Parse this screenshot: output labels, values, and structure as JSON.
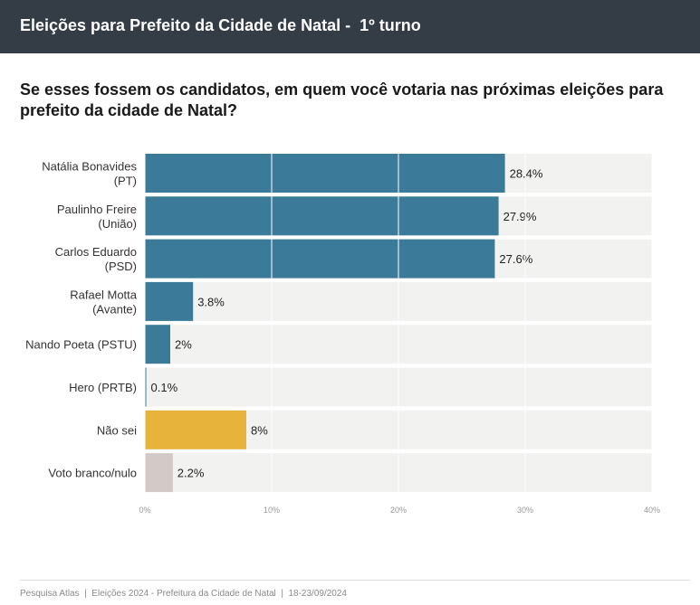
{
  "header": {
    "title": "Eleições para Prefeito da Cidade de Natal -  1º turno"
  },
  "question": "Se esses fossem os candidatos, em quem você votaria nas próximas eleições para prefeito da cidade de Natal?",
  "footer": "Pesquisa Atlas  |  Eleições 2024 - Prefeitura da Cidade de Natal  |  18-23/09/2024",
  "colors": {
    "header_bg": "#343c46",
    "candidate": "#3b7a99",
    "nao_sei": "#e8b33a",
    "branco_nulo": "#d3c9c6",
    "track": "#f2f2f0"
  },
  "chart_data": {
    "type": "bar",
    "orientation": "horizontal",
    "categories": [
      [
        "Natália Bonavides",
        "(PT)"
      ],
      [
        "Paulinho Freire",
        "(União)"
      ],
      [
        "Carlos Eduardo",
        "(PSD)"
      ],
      [
        "Rafael Motta",
        "(Avante)"
      ],
      [
        "Nando Poeta (PSTU)"
      ],
      [
        "Hero (PRTB)"
      ],
      [
        "Não sei"
      ],
      [
        "Voto branco/nulo"
      ]
    ],
    "values": [
      28.4,
      27.9,
      27.6,
      3.8,
      2,
      0.1,
      8,
      2.2
    ],
    "value_labels": [
      "28.4%",
      "27.9%",
      "27.6%",
      "3.8%",
      "2%",
      "0.1%",
      "8%",
      "2.2%"
    ],
    "bar_colors": [
      "#3b7a99",
      "#3b7a99",
      "#3b7a99",
      "#3b7a99",
      "#3b7a99",
      "#3b7a99",
      "#e8b33a",
      "#d3c9c6"
    ],
    "xlim": [
      0,
      40
    ],
    "ticks": [
      0,
      10,
      20,
      30,
      40
    ],
    "tick_labels": [
      "0%",
      "10%",
      "20%",
      "30%",
      "40%"
    ]
  }
}
